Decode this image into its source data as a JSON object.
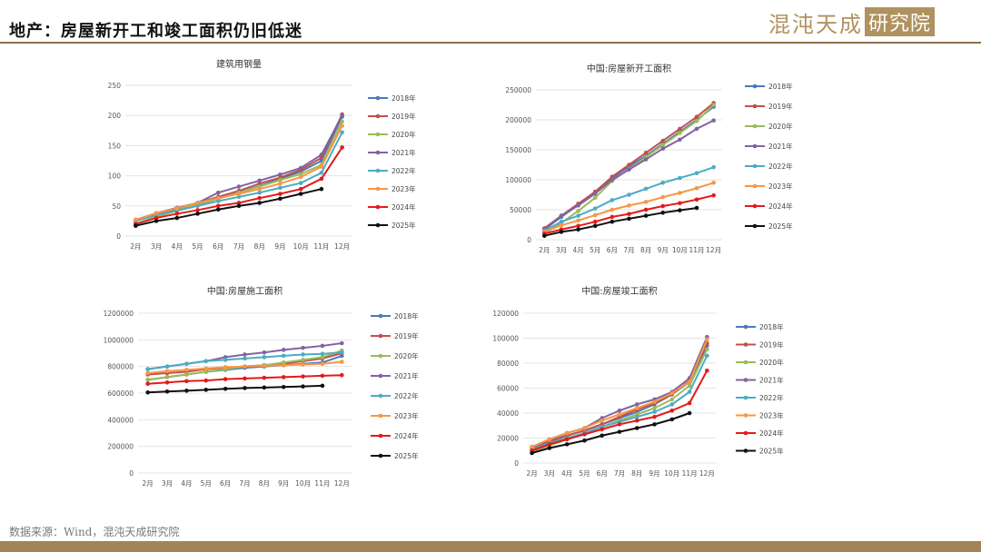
{
  "header": {
    "title": "地产：房屋新开工和竣工面积仍旧低迷",
    "logo_text": "混沌天成",
    "logo_box": "研究院"
  },
  "footer": {
    "source": "数据来源：Wind，混沌天成研究院"
  },
  "colors": {
    "2018年": "#4a7ab8",
    "2019年": "#c0504d",
    "2020年": "#9bbb59",
    "2021年": "#8064a2",
    "2022年": "#4bacc6",
    "2023年": "#f79646",
    "2024年": "#e31a1c",
    "2025年": "#111111"
  },
  "chart_data": [
    {
      "type": "line",
      "title": "建筑用钢量",
      "categories": [
        "2月",
        "3月",
        "4月",
        "5月",
        "6月",
        "7月",
        "8月",
        "9月",
        "10月",
        "11月",
        "12月"
      ],
      "ylim": [
        0,
        250
      ],
      "yticks": [
        "0",
        "50",
        "100",
        "150",
        "200",
        "250"
      ],
      "legend": "right",
      "series": [
        {
          "name": "2018年",
          "values": [
            25,
            35,
            42,
            52,
            62,
            72,
            83,
            95,
            107,
            125,
            198
          ]
        },
        {
          "name": "2019年",
          "values": [
            25,
            37,
            45,
            55,
            65,
            75,
            87,
            97,
            110,
            130,
            202
          ]
        },
        {
          "name": "2020年",
          "values": [
            20,
            32,
            42,
            53,
            62,
            72,
            82,
            93,
            103,
            118,
            190
          ]
        },
        {
          "name": "2021年",
          "values": [
            27,
            38,
            47,
            55,
            72,
            82,
            92,
            102,
            113,
            135,
            200
          ]
        },
        {
          "name": "2022年",
          "values": [
            25,
            35,
            42,
            50,
            58,
            65,
            72,
            80,
            88,
            105,
            172
          ]
        },
        {
          "name": "2023年",
          "values": [
            27,
            38,
            46,
            55,
            63,
            70,
            78,
            87,
            98,
            115,
            183
          ]
        },
        {
          "name": "2024年",
          "values": [
            20,
            30,
            37,
            43,
            50,
            55,
            63,
            70,
            78,
            95,
            147
          ]
        },
        {
          "name": "2025年",
          "values": [
            17,
            25,
            30,
            37,
            44,
            50,
            55,
            62,
            70,
            78,
            null
          ]
        }
      ]
    },
    {
      "type": "line",
      "title": "中国:房屋新开工面积",
      "categories": [
        "2月",
        "3月",
        "4月",
        "5月",
        "6月",
        "7月",
        "8月",
        "9月",
        "10月",
        "11月",
        "12月"
      ],
      "ylim": [
        0,
        250000
      ],
      "yticks": [
        "0",
        "50000",
        "100000",
        "150000",
        "200000",
        "250000"
      ],
      "legend": "right",
      "series": [
        {
          "name": "2018年",
          "values": [
            17000,
            38000,
            58000,
            80000,
            103000,
            122000,
            140000,
            160000,
            180000,
            200000,
            222000
          ]
        },
        {
          "name": "2019年",
          "values": [
            19000,
            40000,
            60000,
            80000,
            105000,
            125000,
            145000,
            165000,
            185000,
            205000,
            228000
          ]
        },
        {
          "name": "2020年",
          "values": [
            10000,
            28000,
            48000,
            70000,
            98000,
            118000,
            138000,
            158000,
            178000,
            198000,
            225000
          ]
        },
        {
          "name": "2021年",
          "values": [
            17000,
            40000,
            57000,
            77000,
            100000,
            117000,
            134000,
            152000,
            167000,
            185000,
            199000
          ]
        },
        {
          "name": "2022年",
          "values": [
            15000,
            30000,
            40000,
            52000,
            66000,
            75000,
            85000,
            95000,
            103000,
            111000,
            121000
          ]
        },
        {
          "name": "2023年",
          "values": [
            13000,
            24000,
            32000,
            41000,
            50000,
            57000,
            63000,
            71000,
            78000,
            86000,
            95000
          ]
        },
        {
          "name": "2024年",
          "values": [
            10000,
            17000,
            23000,
            30000,
            38000,
            43000,
            50000,
            56000,
            61000,
            67000,
            74000
          ]
        },
        {
          "name": "2025年",
          "values": [
            6500,
            13000,
            17000,
            23000,
            30000,
            35000,
            40000,
            45000,
            49000,
            53000,
            null
          ]
        }
      ]
    },
    {
      "type": "line",
      "title": "中国:房屋施工面积",
      "categories": [
        "2月",
        "3月",
        "4月",
        "5月",
        "6月",
        "7月",
        "8月",
        "9月",
        "10月",
        "11月",
        "12月"
      ],
      "ylim": [
        0,
        1200000
      ],
      "yticks": [
        "0",
        "200000",
        "400000",
        "600000",
        "800000",
        "1000000",
        "1200000"
      ],
      "legend": "right",
      "series": [
        {
          "name": "2018年",
          "values": [
            700000,
            720000,
            740000,
            760000,
            775000,
            790000,
            800000,
            810000,
            820000,
            830000,
            880000
          ]
        },
        {
          "name": "2019年",
          "values": [
            740000,
            750000,
            760000,
            780000,
            790000,
            800000,
            810000,
            820000,
            840000,
            860000,
            900000
          ]
        },
        {
          "name": "2020年",
          "values": [
            700000,
            720000,
            740000,
            760000,
            780000,
            800000,
            810000,
            830000,
            850000,
            870000,
            920000
          ]
        },
        {
          "name": "2021年",
          "values": [
            780000,
            800000,
            820000,
            840000,
            870000,
            890000,
            905000,
            925000,
            940000,
            955000,
            975000
          ]
        },
        {
          "name": "2022年",
          "values": [
            780000,
            800000,
            820000,
            840000,
            850000,
            860000,
            870000,
            880000,
            890000,
            895000,
            905000
          ]
        },
        {
          "name": "2023年",
          "values": [
            750000,
            765000,
            775000,
            785000,
            795000,
            800000,
            805000,
            810000,
            815000,
            820000,
            835000
          ]
        },
        {
          "name": "2024年",
          "values": [
            670000,
            680000,
            690000,
            695000,
            705000,
            710000,
            715000,
            720000,
            725000,
            730000,
            735000
          ]
        },
        {
          "name": "2025年",
          "values": [
            605000,
            612000,
            618000,
            625000,
            632000,
            638000,
            642000,
            646000,
            650000,
            655000,
            null
          ]
        }
      ]
    },
    {
      "type": "line",
      "title": "中国:房屋竣工面积",
      "categories": [
        "2月",
        "3月",
        "4月",
        "5月",
        "6月",
        "7月",
        "8月",
        "9月",
        "10月",
        "11月",
        "12月"
      ],
      "ylim": [
        0,
        120000
      ],
      "yticks": [
        "0",
        "20000",
        "40000",
        "60000",
        "80000",
        "100000",
        "120000"
      ],
      "legend": "right",
      "series": [
        {
          "name": "2018年",
          "values": [
            12000,
            18000,
            22000,
            26000,
            31000,
            36000,
            41000,
            47000,
            55000,
            65000,
            94000
          ]
        },
        {
          "name": "2019年",
          "values": [
            12000,
            17000,
            22000,
            26000,
            31000,
            37000,
            43000,
            48000,
            55000,
            66000,
            96000
          ]
        },
        {
          "name": "2020年",
          "values": [
            9000,
            14000,
            19000,
            24000,
            29000,
            34000,
            39000,
            44000,
            51000,
            62000,
            91000
          ]
        },
        {
          "name": "2021年",
          "values": [
            13000,
            19000,
            24000,
            28000,
            36000,
            42000,
            47000,
            51000,
            57000,
            68000,
            101000
          ]
        },
        {
          "name": "2022年",
          "values": [
            11000,
            16000,
            20000,
            24000,
            29000,
            33000,
            37000,
            41000,
            47000,
            57000,
            86000
          ]
        },
        {
          "name": "2023年",
          "values": [
            13000,
            19000,
            24000,
            28000,
            34000,
            39000,
            44000,
            49000,
            56000,
            65000,
            99000
          ]
        },
        {
          "name": "2024年",
          "values": [
            10000,
            15000,
            19000,
            23000,
            27000,
            31000,
            34000,
            37000,
            42000,
            48000,
            74000
          ]
        },
        {
          "name": "2025年",
          "values": [
            8000,
            12000,
            15000,
            18000,
            22000,
            25000,
            28000,
            31000,
            35000,
            40000,
            null
          ]
        }
      ]
    }
  ]
}
